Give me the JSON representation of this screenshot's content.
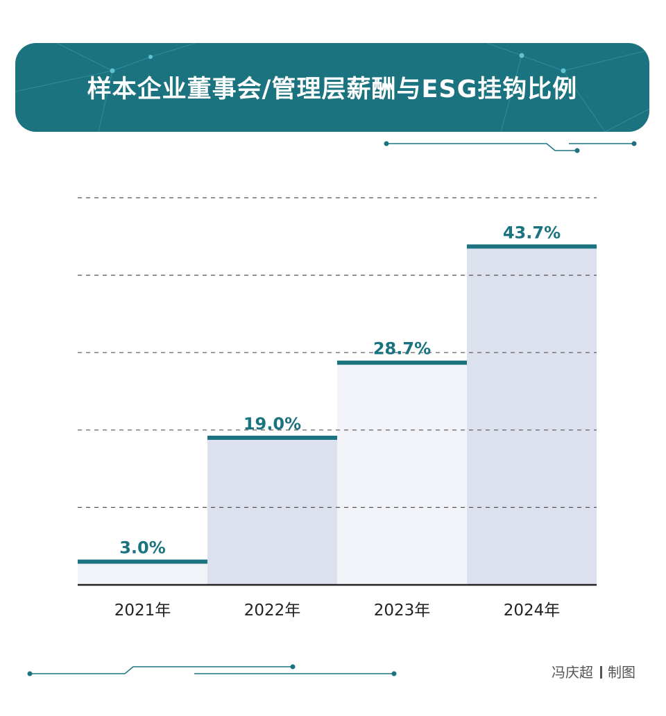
{
  "title": "样本企业董事会/管理层薪酬与ESG挂钩比例",
  "credit": {
    "author": "冯庆超",
    "suffix": "制图"
  },
  "colors": {
    "accent": "#1c7380",
    "bar_light": "#f1f3f8",
    "bar_dark": "#dde1ed",
    "axis": "#222222",
    "grid": "#555555"
  },
  "chart_data": {
    "type": "bar",
    "title": "样本企业董事会/管理层薪酬与ESG挂钩比例",
    "categories": [
      "2021年",
      "2022年",
      "2023年",
      "2024年"
    ],
    "values": [
      3.0,
      19.0,
      28.7,
      43.7
    ],
    "value_labels": [
      "3.0%",
      "19.0%",
      "28.7%",
      "43.7%"
    ],
    "unit": "%",
    "xlabel": "",
    "ylabel": "",
    "ylim": [
      0,
      50
    ],
    "grid": true
  }
}
